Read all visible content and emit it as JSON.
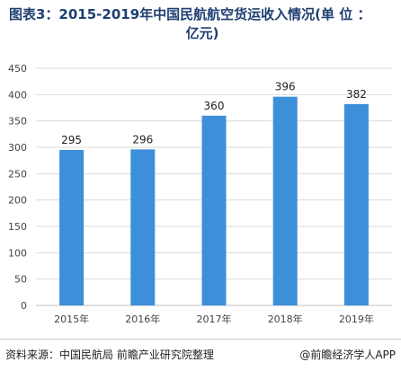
{
  "header": {
    "title_line1": "图表3：2015-2019年中国民航航空货运收入情况(单 位 ：",
    "title_line2": "亿元)"
  },
  "footer": {
    "source": "资料来源：中国民航局 前瞻产业研究院整理",
    "brand": "@前瞻经济学人APP"
  },
  "colors": {
    "bar": "#3d8fd9",
    "grid": "#d9d9d9",
    "axis_text": "#444444",
    "title": "#1f3f72"
  },
  "chart_data": {
    "type": "bar",
    "categories": [
      "2015年",
      "2016年",
      "2017年",
      "2018年",
      "2019年"
    ],
    "values": [
      295,
      296,
      360,
      396,
      382
    ],
    "data_labels": [
      "295",
      "296",
      "360",
      "396",
      "382"
    ],
    "title": "图表3：2015-2019年中国民航航空货运收入情况(单 位 ：亿元)",
    "xlabel": "",
    "ylabel": "",
    "ylim": [
      0,
      450
    ],
    "yticks": [
      0,
      50,
      100,
      150,
      200,
      250,
      300,
      350,
      400,
      450
    ],
    "grid": true,
    "legend": "none"
  }
}
